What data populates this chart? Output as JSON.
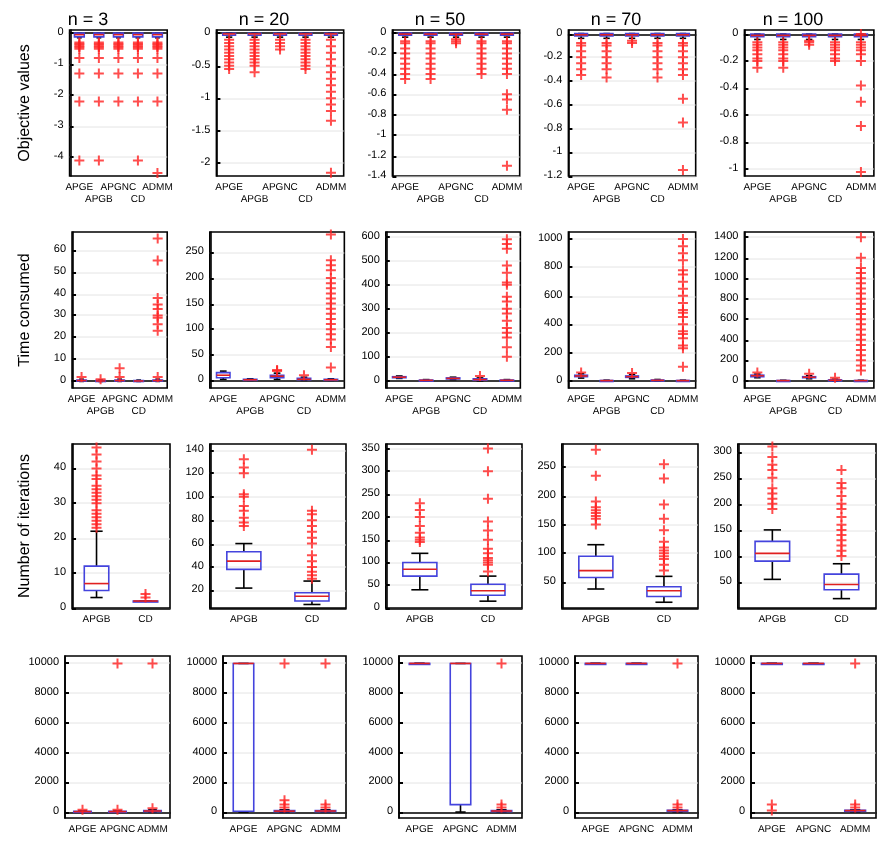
{
  "chart_data": [
    {
      "type": "box",
      "title": "n = 3",
      "ylabel": "Objective values",
      "grid": "y",
      "categories": [
        "APGE",
        "APGB",
        "APGNC",
        "CD",
        "ADMM"
      ],
      "ylim": [
        -4.6,
        0.1
      ],
      "yticks": [
        0,
        -1,
        -2,
        -3,
        -4
      ],
      "boxes": [
        {
          "low": -0.15,
          "q1": -0.12,
          "median": -0.05,
          "q3": 0,
          "high": 0,
          "outliers": [
            -0.3,
            -0.35,
            -0.4,
            -0.45,
            -0.5,
            -0.8,
            -1.3,
            -2.2,
            -4.1
          ]
        },
        {
          "low": -0.15,
          "q1": -0.12,
          "median": -0.05,
          "q3": 0,
          "high": 0,
          "outliers": [
            -0.3,
            -0.35,
            -0.4,
            -0.45,
            -0.5,
            -0.8,
            -1.3,
            -2.2,
            -4.1
          ]
        },
        {
          "low": -0.15,
          "q1": -0.12,
          "median": -0.05,
          "q3": 0,
          "high": 0,
          "outliers": [
            -0.3,
            -0.35,
            -0.4,
            -0.45,
            -0.5,
            -0.8,
            -1.3,
            -2.2
          ]
        },
        {
          "low": -0.15,
          "q1": -0.12,
          "median": -0.05,
          "q3": 0,
          "high": 0,
          "outliers": [
            -0.3,
            -0.35,
            -0.4,
            -0.45,
            -0.5,
            -0.8,
            -1.3,
            -2.2,
            -4.1
          ]
        },
        {
          "low": -0.15,
          "q1": -0.12,
          "median": -0.05,
          "q3": 0,
          "high": 0,
          "outliers": [
            -0.3,
            -0.35,
            -0.4,
            -0.45,
            -0.5,
            -0.8,
            -1.3,
            -2.2,
            -4.5
          ]
        }
      ]
    },
    {
      "type": "box",
      "title": "n = 20",
      "grid": "y",
      "categories": [
        "APGE",
        "APGB",
        "APGNC",
        "CD",
        "ADMM"
      ],
      "ylim": [
        -2.2,
        0.05
      ],
      "yticks": [
        0,
        -0.5,
        -1,
        -1.5,
        -2
      ],
      "boxes": [
        {
          "low": -0.06,
          "q1": -0.03,
          "median": -0.01,
          "q3": 0,
          "high": 0,
          "outliers": [
            -0.1,
            -0.15,
            -0.2,
            -0.25,
            -0.3,
            -0.35,
            -0.4,
            -0.45,
            -0.5,
            -0.55
          ]
        },
        {
          "low": -0.06,
          "q1": -0.03,
          "median": -0.01,
          "q3": 0,
          "high": 0,
          "outliers": [
            -0.1,
            -0.15,
            -0.2,
            -0.25,
            -0.3,
            -0.35,
            -0.4,
            -0.45,
            -0.5,
            -0.6
          ]
        },
        {
          "low": -0.06,
          "q1": -0.03,
          "median": -0.01,
          "q3": 0,
          "high": 0,
          "outliers": [
            -0.1,
            -0.15,
            -0.2,
            -0.25
          ]
        },
        {
          "low": -0.06,
          "q1": -0.03,
          "median": -0.01,
          "q3": 0,
          "high": 0,
          "outliers": [
            -0.1,
            -0.15,
            -0.2,
            -0.25,
            -0.3,
            -0.35,
            -0.4,
            -0.45,
            -0.5,
            -0.55
          ]
        },
        {
          "low": -0.06,
          "q1": -0.03,
          "median": -0.01,
          "q3": 0,
          "high": 0,
          "outliers": [
            -0.1,
            -0.2,
            -0.3,
            -0.4,
            -0.5,
            -0.6,
            -0.7,
            -0.8,
            -0.9,
            -1,
            -1.1,
            -1.2,
            -1.35,
            -2.15
          ]
        }
      ]
    },
    {
      "type": "box",
      "title": "n = 50",
      "grid": "y",
      "categories": [
        "APGE",
        "APGB",
        "APGNC",
        "CD",
        "ADMM"
      ],
      "ylim": [
        -1.4,
        0.03
      ],
      "yticks": [
        0,
        -0.2,
        -0.4,
        -0.6,
        -0.8,
        -1,
        -1.2,
        -1.4
      ],
      "boxes": [
        {
          "low": -0.04,
          "q1": -0.02,
          "median": -0.01,
          "q3": 0,
          "high": 0,
          "outliers": [
            -0.08,
            -0.1,
            -0.15,
            -0.2,
            -0.25,
            -0.3,
            -0.35,
            -0.4,
            -0.45
          ]
        },
        {
          "low": -0.04,
          "q1": -0.02,
          "median": -0.01,
          "q3": 0,
          "high": 0,
          "outliers": [
            -0.08,
            -0.1,
            -0.15,
            -0.2,
            -0.25,
            -0.3,
            -0.35,
            -0.4,
            -0.45
          ]
        },
        {
          "low": -0.04,
          "q1": -0.02,
          "median": -0.01,
          "q3": 0,
          "high": 0,
          "outliers": [
            -0.06,
            -0.08,
            -0.1
          ]
        },
        {
          "low": -0.04,
          "q1": -0.02,
          "median": -0.01,
          "q3": 0,
          "high": 0,
          "outliers": [
            -0.08,
            -0.1,
            -0.15,
            -0.2,
            -0.25,
            -0.3,
            -0.35,
            -0.4
          ]
        },
        {
          "low": -0.04,
          "q1": -0.02,
          "median": -0.01,
          "q3": 0,
          "high": 0,
          "outliers": [
            -0.08,
            -0.1,
            -0.15,
            -0.2,
            -0.25,
            -0.3,
            -0.35,
            -0.4,
            -0.6,
            -0.65,
            -0.75,
            -1.3
          ]
        }
      ]
    },
    {
      "type": "box",
      "title": "n = 70",
      "grid": "y",
      "categories": [
        "APGE",
        "APGB",
        "APGNC",
        "CD",
        "ADMM"
      ],
      "ylim": [
        -1.2,
        0.03
      ],
      "yticks": [
        0,
        -0.2,
        -0.4,
        -0.6,
        -0.8,
        -1,
        -1.2
      ],
      "boxes": [
        {
          "low": -0.04,
          "q1": -0.02,
          "median": -0.01,
          "q3": 0,
          "high": 0,
          "outliers": [
            -0.08,
            -0.1,
            -0.15,
            -0.2,
            -0.25,
            -0.3,
            -0.35
          ]
        },
        {
          "low": -0.04,
          "q1": -0.02,
          "median": -0.01,
          "q3": 0,
          "high": 0,
          "outliers": [
            -0.08,
            -0.1,
            -0.15,
            -0.2,
            -0.25,
            -0.3,
            -0.37
          ]
        },
        {
          "low": -0.04,
          "q1": -0.02,
          "median": -0.01,
          "q3": 0,
          "high": 0,
          "outliers": [
            -0.06,
            -0.08
          ]
        },
        {
          "low": -0.04,
          "q1": -0.02,
          "median": -0.01,
          "q3": 0,
          "high": 0,
          "outliers": [
            -0.08,
            -0.1,
            -0.15,
            -0.2,
            -0.25,
            -0.3,
            -0.37
          ]
        },
        {
          "low": -0.04,
          "q1": -0.02,
          "median": -0.01,
          "q3": 0,
          "high": 0,
          "outliers": [
            -0.08,
            -0.1,
            -0.15,
            -0.2,
            -0.25,
            -0.3,
            -0.35,
            -0.55,
            -0.75,
            -1.15
          ]
        }
      ]
    },
    {
      "type": "box",
      "title": "n = 100",
      "grid": "y",
      "categories": [
        "APGE",
        "APGB",
        "APGNC",
        "CD",
        "ADMM"
      ],
      "ylim": [
        -1.05,
        0.03
      ],
      "yticks": [
        0,
        -0.2,
        -0.4,
        -0.6,
        -0.8,
        -1
      ],
      "boxes": [
        {
          "low": -0.04,
          "q1": -0.02,
          "median": -0.01,
          "q3": 0,
          "high": 0,
          "outliers": [
            -0.06,
            -0.08,
            -0.1,
            -0.12,
            -0.15,
            -0.18,
            -0.2,
            -0.25
          ]
        },
        {
          "low": -0.04,
          "q1": -0.02,
          "median": -0.01,
          "q3": 0,
          "high": 0,
          "outliers": [
            -0.06,
            -0.08,
            -0.1,
            -0.12,
            -0.15,
            -0.18,
            -0.2,
            -0.25
          ]
        },
        {
          "low": -0.04,
          "q1": -0.02,
          "median": -0.01,
          "q3": 0,
          "high": 0,
          "outliers": [
            -0.05,
            -0.06,
            -0.08
          ]
        },
        {
          "low": -0.04,
          "q1": -0.02,
          "median": -0.01,
          "q3": 0,
          "high": 0,
          "outliers": [
            -0.06,
            -0.08,
            -0.1,
            -0.12,
            -0.15,
            -0.18,
            -0.2
          ]
        },
        {
          "low": -0.04,
          "q1": -0.02,
          "median": -0.01,
          "q3": 0,
          "high": 0,
          "outliers": [
            0,
            -0.06,
            -0.08,
            -0.1,
            -0.12,
            -0.15,
            -0.2,
            -0.38,
            -0.5,
            -0.68,
            -1.02
          ]
        }
      ]
    },
    {
      "type": "box",
      "ylabel": "Time consumed",
      "grid": "y",
      "categories": [
        "APGE",
        "APGB",
        "APGNC",
        "CD",
        "ADMM"
      ],
      "ylim": [
        -3,
        68
      ],
      "yticks": [
        0,
        10,
        20,
        30,
        40,
        50,
        60
      ],
      "boxes": [
        {
          "low": 0,
          "q1": 0.2,
          "median": 0.4,
          "q3": 0.6,
          "high": 1,
          "outliers": [
            2
          ]
        },
        {
          "low": 0,
          "q1": 0.1,
          "median": 0.2,
          "q3": 0.4,
          "high": 0.6,
          "outliers": [
            1
          ]
        },
        {
          "low": 0,
          "q1": 0.2,
          "median": 0.4,
          "q3": 0.6,
          "high": 1,
          "outliers": [
            2,
            6
          ]
        },
        {
          "low": 0,
          "q1": 0.1,
          "median": 0.2,
          "q3": 0.4,
          "high": 0.6
        },
        {
          "low": 0,
          "q1": 0.2,
          "median": 0.4,
          "q3": 0.6,
          "high": 1,
          "outliers": [
            2,
            23,
            26,
            29,
            30,
            33,
            35,
            38,
            55,
            65
          ]
        }
      ]
    },
    {
      "type": "box",
      "grid": "y",
      "categories": [
        "APGE",
        "APGB",
        "APGNC",
        "CD",
        "ADMM"
      ],
      "ylim": [
        -15,
        290
      ],
      "yticks": [
        0,
        50,
        100,
        150,
        200,
        250
      ],
      "boxes": [
        {
          "low": 2,
          "q1": 5,
          "median": 10,
          "q3": 15,
          "high": 18
        },
        {
          "low": 0,
          "q1": 0.5,
          "median": 1,
          "q3": 2,
          "high": 3
        },
        {
          "low": 2,
          "q1": 5,
          "median": 8,
          "q3": 10,
          "high": 14,
          "outliers": [
            18,
            20
          ]
        },
        {
          "low": 0,
          "q1": 1,
          "median": 2,
          "q3": 4,
          "high": 6,
          "outliers": [
            10
          ]
        },
        {
          "low": 0,
          "q1": 0.5,
          "median": 1,
          "q3": 2,
          "high": 3,
          "outliers": [
            25,
            65,
            80,
            90,
            100,
            110,
            120,
            130,
            140,
            150,
            160,
            170,
            180,
            190,
            200,
            215,
            225,
            235,
            285
          ]
        }
      ]
    },
    {
      "type": "box",
      "grid": "y",
      "categories": [
        "APGE",
        "APGB",
        "APGNC",
        "CD",
        "ADMM"
      ],
      "ylim": [
        -30,
        620
      ],
      "yticks": [
        0,
        100,
        200,
        300,
        400,
        500,
        600
      ],
      "boxes": [
        {
          "low": 10,
          "q1": 13,
          "median": 15,
          "q3": 17,
          "high": 20
        },
        {
          "low": 0,
          "q1": 1,
          "median": 2,
          "q3": 3,
          "high": 5
        },
        {
          "low": 5,
          "q1": 8,
          "median": 10,
          "q3": 12,
          "high": 15
        },
        {
          "low": 0,
          "q1": 2,
          "median": 5,
          "q3": 8,
          "high": 12,
          "outliers": [
            20
          ]
        },
        {
          "low": 0,
          "q1": 1,
          "median": 2,
          "q3": 3,
          "high": 5,
          "outliers": [
            100,
            140,
            180,
            200,
            220,
            250,
            280,
            300,
            330,
            350,
            400,
            410,
            450,
            480,
            550,
            570,
            590
          ]
        }
      ]
    },
    {
      "type": "box",
      "grid": "y",
      "categories": [
        "APGE",
        "APGB",
        "APGNC",
        "CD",
        "ADMM"
      ],
      "ylim": [
        -50,
        1050
      ],
      "yticks": [
        0,
        200,
        400,
        600,
        800,
        1000
      ],
      "boxes": [
        {
          "low": 20,
          "q1": 30,
          "median": 35,
          "q3": 40,
          "high": 50,
          "outliers": [
            60
          ]
        },
        {
          "low": 0,
          "q1": 1,
          "median": 2,
          "q3": 3,
          "high": 5
        },
        {
          "low": 15,
          "q1": 25,
          "median": 30,
          "q3": 35,
          "high": 45,
          "outliers": [
            55
          ]
        },
        {
          "low": 0,
          "q1": 2,
          "median": 4,
          "q3": 6,
          "high": 10
        },
        {
          "low": 0,
          "q1": 1,
          "median": 2,
          "q3": 3,
          "high": 5,
          "outliers": [
            100,
            230,
            250,
            300,
            330,
            350,
            400,
            450,
            480,
            500,
            550,
            600,
            650,
            700,
            750,
            780,
            850,
            900,
            950,
            1000
          ]
        }
      ]
    },
    {
      "type": "box",
      "grid": "y",
      "categories": [
        "APGE",
        "APGB",
        "APGNC",
        "CD",
        "ADMM"
      ],
      "ylim": [
        -70,
        1450
      ],
      "yticks": [
        0,
        200,
        400,
        600,
        800,
        1000,
        1200,
        1400
      ],
      "boxes": [
        {
          "low": 30,
          "q1": 40,
          "median": 50,
          "q3": 55,
          "high": 65,
          "outliers": [
            80
          ]
        },
        {
          "low": 0,
          "q1": 1,
          "median": 2,
          "q3": 3,
          "high": 5
        },
        {
          "low": 20,
          "q1": 30,
          "median": 35,
          "q3": 40,
          "high": 50,
          "outliers": [
            70
          ]
        },
        {
          "low": 0,
          "q1": 3,
          "median": 6,
          "q3": 9,
          "high": 15,
          "outliers": [
            30
          ]
        },
        {
          "low": 0,
          "q1": 1,
          "median": 2,
          "q3": 3,
          "high": 5,
          "outliers": [
            100,
            150,
            200,
            250,
            300,
            350,
            400,
            450,
            500,
            550,
            600,
            650,
            700,
            750,
            800,
            850,
            900,
            950,
            1000,
            1050,
            1100,
            1200,
            1400
          ]
        }
      ]
    },
    {
      "type": "box",
      "ylabel": "Number of iterations",
      "grid": "y",
      "categories": [
        "APGB",
        "CD"
      ],
      "ylim": [
        0,
        47
      ],
      "yticks": [
        0,
        10,
        20,
        30,
        40
      ],
      "boxes": [
        {
          "low": 3,
          "q1": 5,
          "median": 7,
          "q3": 12,
          "high": 22,
          "outliers": [
            23,
            24,
            25,
            26,
            27,
            28,
            30,
            31,
            32,
            33,
            34,
            35,
            37,
            38,
            40,
            42,
            44,
            46
          ]
        },
        {
          "low": 2,
          "q1": 2,
          "median": 2,
          "q3": 2,
          "high": 2,
          "outliers": [
            3,
            4
          ]
        }
      ]
    },
    {
      "type": "box",
      "grid": "y",
      "categories": [
        "APGB",
        "CD"
      ],
      "ylim": [
        5,
        145
      ],
      "yticks": [
        20,
        40,
        60,
        80,
        100,
        120,
        140
      ],
      "boxes": [
        {
          "low": 22,
          "q1": 38,
          "median": 45,
          "q3": 53,
          "high": 60,
          "outliers": [
            75,
            78,
            82,
            88,
            92,
            100,
            102,
            120,
            125,
            132
          ]
        },
        {
          "low": 8,
          "q1": 11,
          "median": 15,
          "q3": 18,
          "high": 28,
          "outliers": [
            30,
            33,
            36,
            40,
            45,
            50,
            60,
            65,
            70,
            75,
            80,
            85,
            88,
            140
          ]
        }
      ]
    },
    {
      "type": "box",
      "grid": "y",
      "categories": [
        "APGB",
        "CD"
      ],
      "ylim": [
        0,
        360
      ],
      "yticks": [
        0,
        50,
        100,
        150,
        200,
        250,
        300,
        350
      ],
      "boxes": [
        {
          "low": 40,
          "q1": 70,
          "median": 85,
          "q3": 100,
          "high": 120,
          "outliers": [
            145,
            150,
            155,
            165,
            180,
            200,
            215,
            230
          ]
        },
        {
          "low": 15,
          "q1": 28,
          "median": 38,
          "q3": 52,
          "high": 70,
          "outliers": [
            80,
            95,
            100,
            105,
            110,
            120,
            130,
            150,
            170,
            190,
            240,
            300,
            350
          ]
        }
      ]
    },
    {
      "type": "box",
      "grid": "y",
      "categories": [
        "APGB",
        "CD"
      ],
      "ylim": [
        5,
        290
      ],
      "yticks": [
        50,
        100,
        150,
        200,
        250
      ],
      "boxes": [
        {
          "low": 38,
          "q1": 58,
          "median": 70,
          "q3": 95,
          "high": 115,
          "outliers": [
            150,
            160,
            165,
            170,
            175,
            180,
            190,
            235,
            280
          ]
        },
        {
          "low": 15,
          "q1": 25,
          "median": 35,
          "q3": 42,
          "high": 60,
          "outliers": [
            70,
            80,
            90,
            95,
            100,
            105,
            110,
            120,
            140,
            160,
            185,
            230,
            255
          ]
        }
      ]
    },
    {
      "type": "box",
      "grid": "y",
      "categories": [
        "APGB",
        "CD"
      ],
      "ylim": [
        0,
        315
      ],
      "yticks": [
        50,
        100,
        150,
        200,
        250,
        300
      ],
      "boxes": [
        {
          "low": 55,
          "q1": 90,
          "median": 105,
          "q3": 128,
          "high": 150,
          "outliers": [
            190,
            200,
            210,
            220,
            230,
            250,
            265,
            275,
            290,
            310
          ]
        },
        {
          "low": 18,
          "q1": 35,
          "median": 45,
          "q3": 65,
          "high": 85,
          "outliers": [
            100,
            110,
            120,
            130,
            140,
            150,
            160,
            175,
            190,
            200,
            215,
            230,
            240,
            265
          ]
        }
      ]
    },
    {
      "type": "box",
      "grid": "y",
      "categories": [
        "APGE",
        "APGNC",
        "ADMM"
      ],
      "ylim": [
        -400,
        10500
      ],
      "yticks": [
        0,
        2000,
        4000,
        6000,
        8000,
        10000
      ],
      "boxes": [
        {
          "low": 0,
          "q1": 10,
          "median": 30,
          "q3": 50,
          "high": 80,
          "outliers": [
            150
          ]
        },
        {
          "low": 0,
          "q1": 10,
          "median": 30,
          "q3": 50,
          "high": 80,
          "outliers": [
            150,
            10000
          ]
        },
        {
          "low": 20,
          "q1": 50,
          "median": 70,
          "q3": 100,
          "high": 150,
          "outliers": [
            250,
            10000
          ]
        }
      ]
    },
    {
      "type": "box",
      "grid": "y",
      "categories": [
        "APGE",
        "APGNC",
        "ADMM"
      ],
      "ylim": [
        -400,
        10500
      ],
      "yticks": [
        0,
        2000,
        4000,
        6000,
        8000,
        10000
      ],
      "boxes": [
        {
          "low": 0,
          "q1": 50,
          "median": 10000,
          "q3": 10000,
          "high": 10000
        },
        {
          "low": 0,
          "q1": 30,
          "median": 60,
          "q3": 100,
          "high": 150,
          "outliers": [
            300,
            500,
            800,
            10000
          ]
        },
        {
          "low": 20,
          "q1": 50,
          "median": 70,
          "q3": 100,
          "high": 150,
          "outliers": [
            300,
            500,
            10000
          ]
        }
      ]
    },
    {
      "type": "box",
      "grid": "y",
      "categories": [
        "APGE",
        "APGNC",
        "ADMM"
      ],
      "ylim": [
        -400,
        10500
      ],
      "yticks": [
        0,
        2000,
        4000,
        6000,
        8000,
        10000
      ],
      "boxes": [
        {
          "low": 10000,
          "q1": 10000,
          "median": 10000,
          "q3": 10000,
          "high": 10000
        },
        {
          "low": 0,
          "q1": 500,
          "median": 10000,
          "q3": 10000,
          "high": 10000
        },
        {
          "low": 20,
          "q1": 50,
          "median": 70,
          "q3": 100,
          "high": 150,
          "outliers": [
            300,
            500,
            10000
          ]
        }
      ]
    },
    {
      "type": "box",
      "grid": "y",
      "categories": [
        "APGE",
        "APGNC",
        "ADMM"
      ],
      "ylim": [
        -400,
        10500
      ],
      "yticks": [
        0,
        2000,
        4000,
        6000,
        8000,
        10000
      ],
      "boxes": [
        {
          "low": 10000,
          "q1": 10000,
          "median": 10000,
          "q3": 10000,
          "high": 10000
        },
        {
          "low": 10000,
          "q1": 10000,
          "median": 10000,
          "q3": 10000,
          "high": 10000
        },
        {
          "low": 20,
          "q1": 50,
          "median": 100,
          "q3": 120,
          "high": 150,
          "outliers": [
            300,
            500,
            10000
          ]
        }
      ]
    },
    {
      "type": "box",
      "grid": "y",
      "categories": [
        "APGE",
        "APGNC",
        "ADMM"
      ],
      "ylim": [
        -400,
        10500
      ],
      "yticks": [
        0,
        2000,
        4000,
        6000,
        8000,
        10000
      ],
      "boxes": [
        {
          "low": 10000,
          "q1": 10000,
          "median": 10000,
          "q3": 10000,
          "high": 10000,
          "outliers": [
            100,
            500
          ]
        },
        {
          "low": 10000,
          "q1": 10000,
          "median": 10000,
          "q3": 10000,
          "high": 10000
        },
        {
          "low": 20,
          "q1": 50,
          "median": 100,
          "q3": 120,
          "high": 150,
          "outliers": [
            300,
            500,
            10000
          ]
        }
      ]
    }
  ]
}
